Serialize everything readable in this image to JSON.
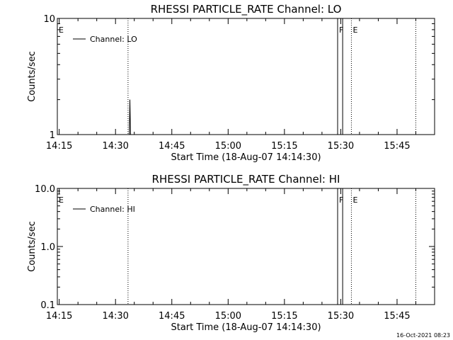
{
  "timestamp": "16-Oct-2021 08:23",
  "chart_data": [
    {
      "type": "line",
      "title": "RHESSI PARTICLE_RATE Channel: LO",
      "xlabel": "Start Time (18-Aug-07 14:14:30)",
      "ylabel": "Counts/sec",
      "yscale": "log",
      "xlim": [
        "14:14:30",
        "15:55:00"
      ],
      "ylim": [
        1,
        10
      ],
      "x_ticks": [
        "14:15",
        "14:30",
        "14:45",
        "15:00",
        "15:15",
        "15:30",
        "15:45"
      ],
      "y_ticks": [
        "1",
        "10"
      ],
      "legend": "top-left",
      "series": [
        {
          "name": "Channel: LO",
          "points": [
            {
              "x": "14:33:40",
              "y": 1
            },
            {
              "x": "14:33:50",
              "y": 2
            },
            {
              "x": "14:34:00",
              "y": 1
            },
            {
              "x": "15:29:10",
              "y": 1
            },
            {
              "x": "15:29:10",
              "y": 10
            },
            {
              "x": "15:30:30",
              "y": 10
            },
            {
              "x": "15:30:30",
              "y": 1
            }
          ]
        }
      ],
      "markers": [
        {
          "label": "E",
          "x": "14:14:30"
        },
        {
          "label": "",
          "x": "14:33:20"
        },
        {
          "label": "F",
          "x": "15:29:10"
        },
        {
          "label": "E",
          "x": "15:32:50"
        },
        {
          "label": "",
          "x": "15:50:00"
        }
      ]
    },
    {
      "type": "line",
      "title": "RHESSI PARTICLE_RATE Channel: HI",
      "xlabel": "Start Time (18-Aug-07 14:14:30)",
      "ylabel": "Counts/sec",
      "yscale": "log",
      "xlim": [
        "14:14:30",
        "15:55:00"
      ],
      "ylim": [
        0.1,
        10
      ],
      "x_ticks": [
        "14:15",
        "14:30",
        "14:45",
        "15:00",
        "15:15",
        "15:30",
        "15:45"
      ],
      "y_ticks": [
        "0.1",
        "1.0",
        "10.0"
      ],
      "legend": "top-left",
      "series": [
        {
          "name": "Channel: HI",
          "points": [
            {
              "x": "15:29:10",
              "y": 0.1
            },
            {
              "x": "15:29:10",
              "y": 10
            },
            {
              "x": "15:30:30",
              "y": 10
            },
            {
              "x": "15:30:30",
              "y": 0.1
            }
          ]
        }
      ],
      "markers": [
        {
          "label": "E",
          "x": "14:14:30"
        },
        {
          "label": "",
          "x": "14:33:20"
        },
        {
          "label": "F",
          "x": "15:29:10"
        },
        {
          "label": "E",
          "x": "15:32:50"
        },
        {
          "label": "",
          "x": "15:50:00"
        }
      ]
    }
  ]
}
